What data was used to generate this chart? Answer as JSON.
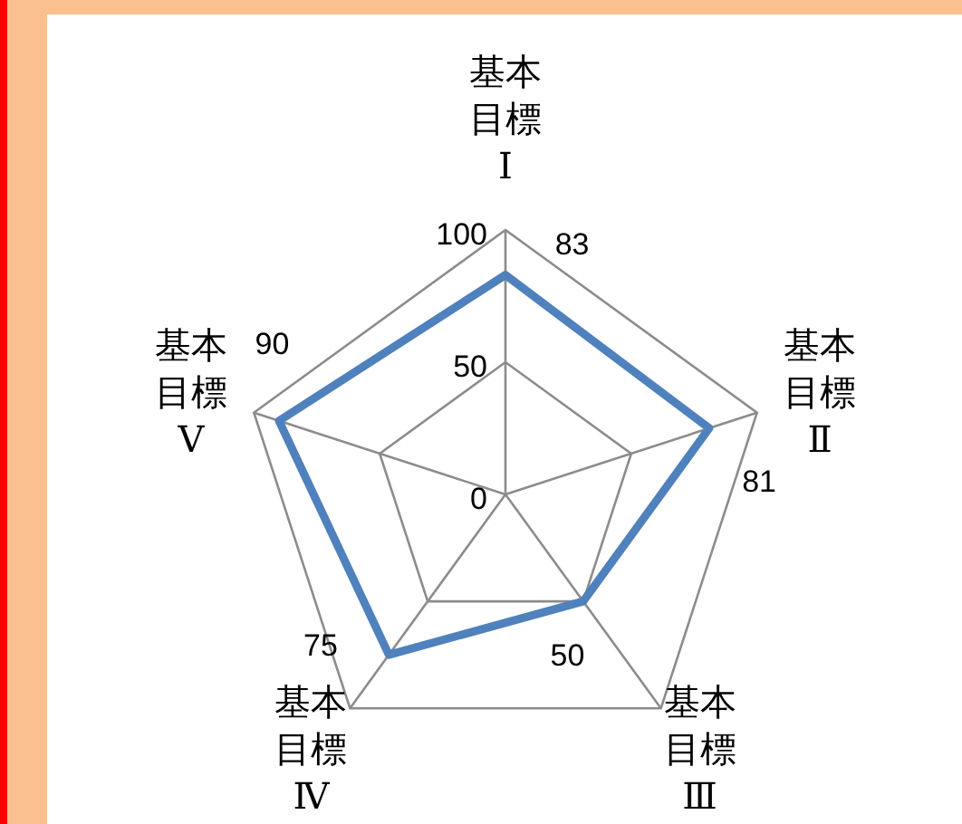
{
  "chart_data": {
    "type": "radar",
    "categories": [
      "基本目標Ⅰ",
      "基本目標Ⅱ",
      "基本目標Ⅲ",
      "基本目標Ⅳ",
      "基本目標Ⅴ"
    ],
    "series": [
      {
        "color": "#4f81bd",
        "values": [
          83,
          81,
          50,
          75,
          90
        ]
      }
    ],
    "ylim": [
      0,
      100
    ],
    "yticks": [
      0,
      50,
      100
    ],
    "data_labels": true,
    "grid": true,
    "marker": "none",
    "line_style": "solid"
  }
}
